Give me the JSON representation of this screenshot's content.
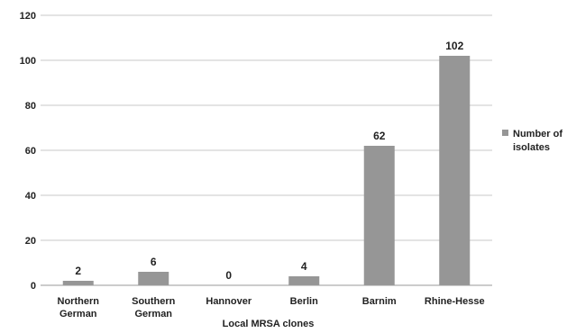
{
  "chart_data": {
    "type": "bar",
    "categories": [
      [
        "Northern",
        "German"
      ],
      [
        "Southern",
        "German"
      ],
      [
        "Hannover"
      ],
      [
        "Berlin"
      ],
      [
        "Barnim"
      ],
      [
        "Rhine-Hesse"
      ]
    ],
    "series": [
      {
        "name": "Number of isolates",
        "values": [
          2,
          6,
          0,
          4,
          62,
          102
        ],
        "color": "#969696"
      }
    ],
    "data_labels": [
      "2",
      "6",
      "0",
      "4",
      "62",
      "102"
    ],
    "title": "",
    "xlabel": "Local MRSA clones",
    "ylabel": "",
    "ylim": [
      0,
      120
    ],
    "yticks": [
      0,
      20,
      40,
      60,
      80,
      100,
      120
    ],
    "grid": true,
    "legend": {
      "position": "right",
      "lines": [
        "Number of",
        "isolates"
      ]
    }
  }
}
